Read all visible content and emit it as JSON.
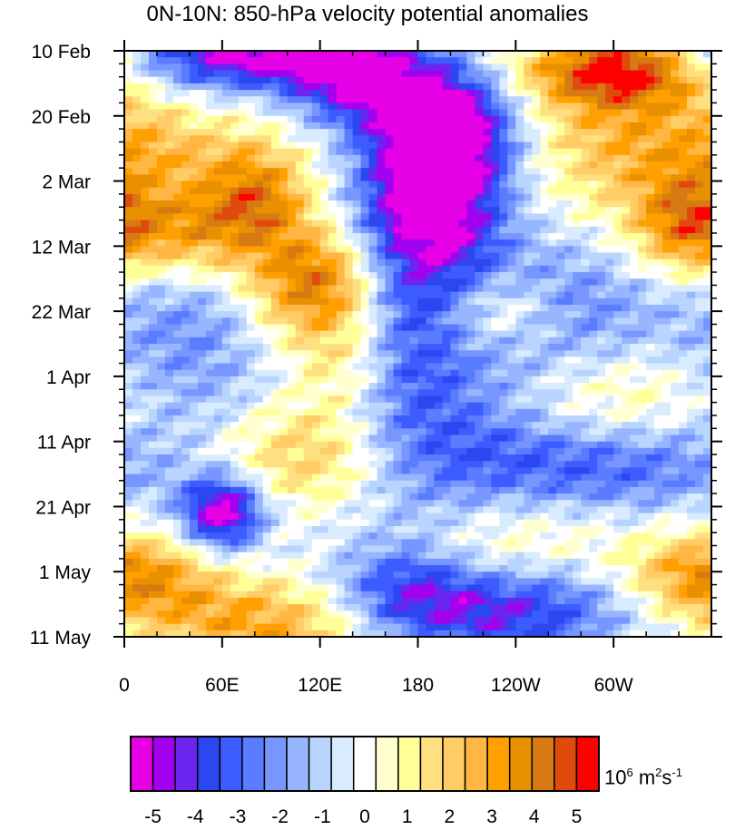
{
  "chart_data": {
    "type": "heatmap",
    "title": "0N-10N: 850-hPa velocity potential anomalies",
    "x_ticks": [
      "0",
      "60E",
      "120E",
      "180",
      "120W",
      "60W"
    ],
    "x_tick_values_deg": [
      0,
      60,
      120,
      180,
      240,
      300
    ],
    "xlim_deg": [
      0,
      360
    ],
    "y_ticks": [
      "10 Feb",
      "20 Feb",
      "2 Mar",
      "12 Mar",
      "22 Mar",
      "1 Apr",
      "11 Apr",
      "21 Apr",
      "1 May",
      "11 May"
    ],
    "y_tick_values_day": [
      0,
      10,
      20,
      30,
      40,
      50,
      60,
      70,
      80,
      90
    ],
    "ylim_day": [
      0,
      90
    ],
    "colorbar": {
      "units_base": "10",
      "units_exp1": "6",
      "units_m": " m",
      "units_exp2": "2",
      "units_s": "s",
      "units_exp3": "-1",
      "labels": [
        "-5",
        "-4",
        "-3",
        "-2",
        "-1",
        "0",
        "1",
        "2",
        "3",
        "4",
        "5"
      ],
      "label_values": [
        -5,
        -4,
        -3,
        -2,
        -1,
        0,
        1,
        2,
        3,
        4,
        5
      ],
      "levels": [
        -5,
        -4.5,
        -4,
        -3.5,
        -3,
        -2.5,
        -2,
        -1.5,
        -1,
        -0.5,
        0,
        0.5,
        1,
        1.5,
        2,
        2.5,
        3,
        3.5,
        4,
        4.5,
        5
      ],
      "colors": [
        "#e600e6",
        "#a200ee",
        "#6a26ee",
        "#2c46f0",
        "#3c5cff",
        "#5a7cff",
        "#7896ff",
        "#98b6ff",
        "#b8d4ff",
        "#d8ebff",
        "#ffffff",
        "#ffffd0",
        "#ffff98",
        "#ffe080",
        "#ffcc66",
        "#ffb642",
        "#ffa000",
        "#e89000",
        "#d87a14",
        "#e04a0c",
        "#ff0000"
      ]
    },
    "features": [
      {
        "lon": 190,
        "day": 22,
        "value": -5.5,
        "slon": 30,
        "sday": 9
      },
      {
        "lon": 200,
        "day": 11,
        "value": -4.2,
        "slon": 28,
        "sday": 6
      },
      {
        "lon": 80,
        "day": 1,
        "value": -4.8,
        "slon": 55,
        "sday": 3.5
      },
      {
        "lon": 145,
        "day": 5,
        "value": -3.8,
        "slon": 30,
        "sday": 5
      },
      {
        "lon": 165,
        "day": 45,
        "value": -2.6,
        "slon": 28,
        "sday": 14
      },
      {
        "lon": 205,
        "day": 62,
        "value": -2.4,
        "slon": 45,
        "sday": 10
      },
      {
        "lon": 260,
        "day": 40,
        "value": -2.2,
        "slon": 60,
        "sday": 8
      },
      {
        "lon": 300,
        "day": 64,
        "value": -2.6,
        "slon": 55,
        "sday": 5
      },
      {
        "lon": 60,
        "day": 71,
        "value": -5.2,
        "slon": 18,
        "sday": 4
      },
      {
        "lon": 40,
        "day": 45,
        "value": -1.8,
        "slon": 40,
        "sday": 12
      },
      {
        "lon": 230,
        "day": 86,
        "value": -3.8,
        "slon": 60,
        "sday": 5
      },
      {
        "lon": 170,
        "day": 82,
        "value": -2.2,
        "slon": 30,
        "sday": 5
      },
      {
        "lon": 300,
        "day": 3,
        "value": 4.8,
        "slon": 40,
        "sday": 4
      },
      {
        "lon": 310,
        "day": 14,
        "value": 2.6,
        "slon": 45,
        "sday": 8
      },
      {
        "lon": 345,
        "day": 27,
        "value": 3.2,
        "slon": 25,
        "sday": 6
      },
      {
        "lon": 120,
        "day": 36,
        "value": 4.6,
        "slon": 30,
        "sday": 6
      },
      {
        "lon": 80,
        "day": 21,
        "value": 3.4,
        "slon": 25,
        "sday": 6
      },
      {
        "lon": 40,
        "day": 28,
        "value": 3.2,
        "slon": 40,
        "sday": 5
      },
      {
        "lon": 20,
        "day": 15,
        "value": 1.8,
        "slon": 30,
        "sday": 5
      },
      {
        "lon": 140,
        "day": 48,
        "value": 2.4,
        "slon": 25,
        "sday": 6
      },
      {
        "lon": 230,
        "day": 40,
        "value": 2.4,
        "slon": 25,
        "sday": 4
      },
      {
        "lon": 120,
        "day": 62,
        "value": 2.6,
        "slon": 45,
        "sday": 6
      },
      {
        "lon": 90,
        "day": 88,
        "value": 3.2,
        "slon": 50,
        "sday": 5
      },
      {
        "lon": 20,
        "day": 81,
        "value": 2.4,
        "slon": 30,
        "sday": 5
      },
      {
        "lon": 340,
        "day": 81,
        "value": 2.4,
        "slon": 30,
        "sday": 5
      },
      {
        "lon": 300,
        "day": 53,
        "value": 1.6,
        "slon": 50,
        "sday": 6
      },
      {
        "lon": 230,
        "day": 75,
        "value": 1.8,
        "slon": 45,
        "sday": 6
      }
    ]
  }
}
